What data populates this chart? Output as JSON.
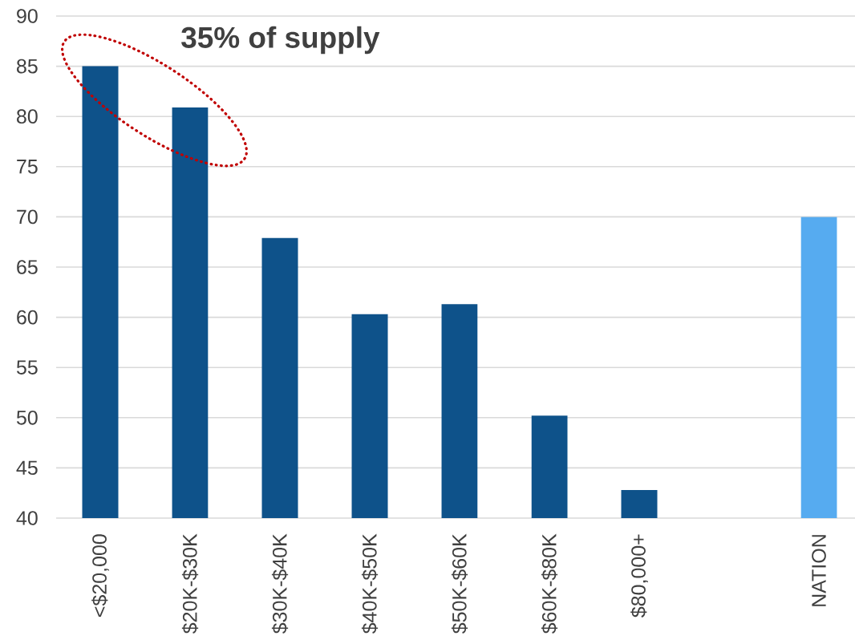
{
  "chart_data": {
    "type": "bar",
    "categories": [
      "<$20,000",
      "$20K-$30K",
      "$30K-$40K",
      "$40K-$50K",
      "$50K-$60K",
      "$60K-$80K",
      "$80,000+",
      null,
      "NATION"
    ],
    "values": [
      85.0,
      80.9,
      67.9,
      60.3,
      61.3,
      50.2,
      42.8,
      null,
      70.0
    ],
    "colors": [
      "#0e528a",
      "#0e528a",
      "#0e528a",
      "#0e528a",
      "#0e528a",
      "#0e528a",
      "#0e528a",
      null,
      "#56abf0"
    ],
    "ylim": [
      40,
      90
    ],
    "yticks": [
      40,
      45,
      50,
      55,
      60,
      65,
      70,
      75,
      80,
      85,
      90
    ],
    "grid": "y",
    "annotations": [
      "35% of supply"
    ]
  }
}
